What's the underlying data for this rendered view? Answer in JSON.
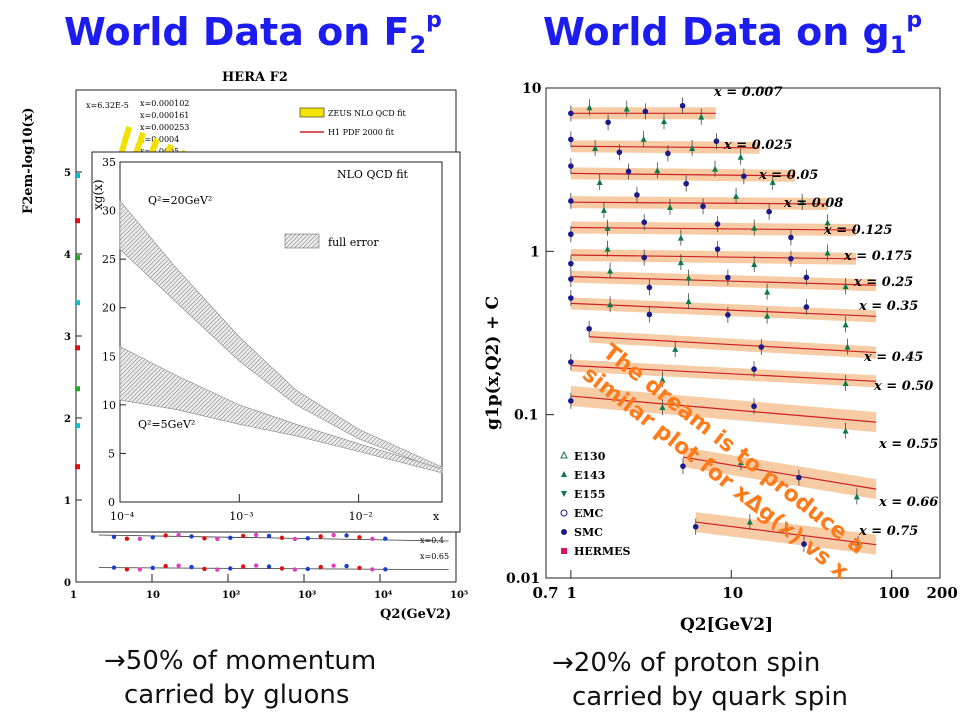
{
  "titles": {
    "left_main": "World Data on F",
    "left_sub": "2",
    "left_sup": "p",
    "right_main": "World Data on g",
    "right_sub": "1",
    "right_sup": "p"
  },
  "captions": {
    "left_line1": "50% of momentum",
    "left_line2": "carried by gluons",
    "right_line1": "20% of proton spin",
    "right_line2": "carried by quark spin",
    "arrow": "→"
  },
  "annotation": {
    "line1": "The dream is to produce a",
    "line2": "similar plot for xΔg(x) vs x"
  },
  "colors": {
    "title": "#1c1cf0",
    "annotation": "#ff7a1a",
    "band": "#f6c79b",
    "curve": "#cc2222",
    "smc": "#1a1a8c",
    "e143": "#0e7a4c"
  },
  "chart_data": [
    {
      "type": "line",
      "title": "HERA F2",
      "ylabel": "F2em-log10(x)",
      "xlabel": "Q2(GeV2)",
      "xscale": "log",
      "xlim": [
        1,
        100000
      ],
      "ylim": [
        0,
        6
      ],
      "ticks_x": [
        "1",
        "10",
        "10²",
        "10³",
        "10⁴",
        "10⁵"
      ],
      "ticks_y": [
        "0",
        "1",
        "2",
        "3",
        "4",
        "5"
      ],
      "legend": [
        "ZEUS NLO QCD fit",
        "H1 PDF 2000 fit"
      ],
      "legend_position": "top-right",
      "x_bin_labels": [
        "x=6.32E-5",
        "x=0.000102",
        "x=0.000161",
        "x=0.000253",
        "x=0.0004",
        "x=0.0005",
        "x=0.4",
        "x=0.65"
      ],
      "inset": {
        "type": "area",
        "title": "NLO QCD fit",
        "ylabel": "xg(x)",
        "xlabel": "x",
        "xscale": "log",
        "xlim": [
          0.0001,
          0.05
        ],
        "ylim": [
          0,
          35
        ],
        "ticks_y": [
          "0",
          "5",
          "10",
          "15",
          "20",
          "25",
          "30",
          "35"
        ],
        "ticks_x": [
          "10⁻⁴",
          "10⁻³",
          "10⁻²"
        ],
        "legend": [
          "full error"
        ],
        "series": [
          {
            "name": "Q²=20GeV²",
            "x": [
              0.0001,
              0.0003,
              0.001,
              0.003,
              0.01,
              0.05
            ],
            "upper": [
              31,
              24,
              17,
              11.5,
              7.5,
              3.6
            ],
            "lower": [
              26,
              20.5,
              14.5,
              10,
              6.5,
              3.2
            ]
          },
          {
            "name": "Q²=5GeV²",
            "x": [
              0.0001,
              0.0003,
              0.001,
              0.003,
              0.01,
              0.05
            ],
            "upper": [
              16,
              13,
              10,
              8,
              6,
              3.4
            ],
            "lower": [
              10.5,
              9.5,
              8,
              6.8,
              5.2,
              3
            ]
          }
        ]
      }
    },
    {
      "type": "line",
      "ylabel": "g1p(x,Q2) + C",
      "xlabel": "Q2[GeV2]",
      "xscale": "log",
      "yscale": "log",
      "xlim": [
        0.7,
        200
      ],
      "ylim": [
        0.01,
        10
      ],
      "ticks_x": [
        "0.7",
        "1",
        "10",
        "100",
        "200"
      ],
      "ticks_y": [
        "0.01",
        "0.1",
        "1",
        "10"
      ],
      "legend": [
        "E130",
        "E143",
        "E155",
        "EMC",
        "SMC",
        "HERMES"
      ],
      "legend_position": "bottom-left",
      "series": [
        {
          "name": "x = 0.007",
          "values_approx": [
            7.0,
            7.0
          ]
        },
        {
          "name": "x = 0.025",
          "values_approx": [
            4.4,
            4.3
          ]
        },
        {
          "name": "x = 0.05",
          "values_approx": [
            3.0,
            2.9
          ]
        },
        {
          "name": "x = 0.08",
          "values_approx": [
            2.0,
            1.95
          ]
        },
        {
          "name": "x = 0.125",
          "values_approx": [
            1.4,
            1.35
          ]
        },
        {
          "name": "x = 0.175",
          "values_approx": [
            0.95,
            0.9
          ]
        },
        {
          "name": "x = 0.25",
          "values_approx": [
            0.7,
            0.62
          ]
        },
        {
          "name": "x = 0.35",
          "values_approx": [
            0.48,
            0.4
          ]
        },
        {
          "name": "x = 0.45",
          "values_approx": [
            0.3,
            0.24
          ]
        },
        {
          "name": "x = 0.50",
          "values_approx": [
            0.2,
            0.16
          ]
        },
        {
          "name": "x = 0.55",
          "values_approx": [
            0.13,
            0.09
          ]
        },
        {
          "name": "x = 0.66",
          "values_approx": [
            0.055,
            0.035
          ]
        },
        {
          "name": "x = 0.75",
          "values_approx": [
            0.022,
            0.016
          ]
        }
      ]
    }
  ]
}
